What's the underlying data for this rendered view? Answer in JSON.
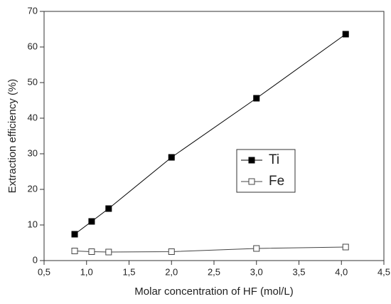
{
  "chart_data": {
    "type": "line",
    "xlabel": "Molar concentration of HF (mol/L)",
    "ylabel": "Extraction efficiency (%)",
    "x": [
      0.86,
      1.06,
      1.26,
      2.0,
      3.0,
      4.05
    ],
    "series": [
      {
        "name": "Ti",
        "color": "#000000",
        "filled": true,
        "values": [
          7.4,
          11.0,
          14.6,
          29.0,
          45.6,
          63.6
        ]
      },
      {
        "name": "Fe",
        "color": "#444444",
        "filled": false,
        "values": [
          2.7,
          2.5,
          2.4,
          2.5,
          3.4,
          3.8
        ]
      }
    ],
    "xlim": [
      0.5,
      4.5
    ],
    "xticks": [
      {
        "value": 0.5,
        "label": "0,5"
      },
      {
        "value": 1.0,
        "label": "1,0"
      },
      {
        "value": 1.5,
        "label": "1,5"
      },
      {
        "value": 2.0,
        "label": "2,0"
      },
      {
        "value": 2.5,
        "label": "2,5"
      },
      {
        "value": 3.0,
        "label": "3,0"
      },
      {
        "value": 3.5,
        "label": "3,5"
      },
      {
        "value": 4.0,
        "label": "4,0"
      },
      {
        "value": 4.5,
        "label": "4,5"
      }
    ],
    "ylim": [
      0,
      70
    ],
    "yticks": [
      0,
      10,
      20,
      30,
      40,
      50,
      60,
      70
    ],
    "legend": "right"
  }
}
